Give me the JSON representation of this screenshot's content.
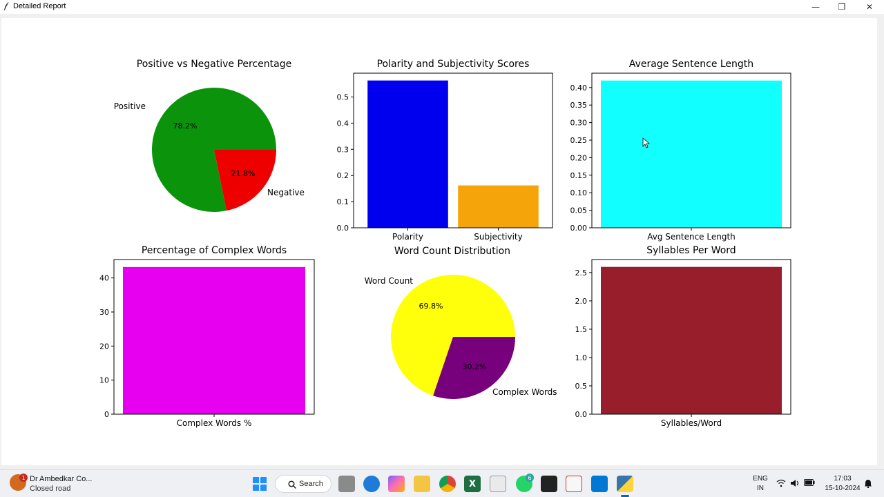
{
  "window": {
    "title": "Detailed Report",
    "controls": {
      "minimize": "—",
      "maximize": "❐",
      "close": "✕"
    }
  },
  "chart_data": [
    {
      "type": "pie",
      "title": "Positive vs Negative Percentage",
      "labels": [
        "Positive",
        "Negative"
      ],
      "values": [
        78.2,
        21.8
      ],
      "value_labels": [
        "78.2%",
        "21.8%"
      ],
      "colors": [
        "#0b930b",
        "#ee0000"
      ]
    },
    {
      "type": "bar",
      "title": "Polarity and Subjectivity Scores",
      "categories": [
        "Polarity",
        "Subjectivity"
      ],
      "values": [
        0.563,
        0.162
      ],
      "colors": [
        "#0000ee",
        "#f5a40a"
      ],
      "ylim": [
        0,
        0.591
      ],
      "yticks": [
        0.0,
        0.1,
        0.2,
        0.3,
        0.4,
        0.5
      ],
      "ytick_labels": [
        "0.0",
        "0.1",
        "0.2",
        "0.3",
        "0.4",
        "0.5"
      ]
    },
    {
      "type": "bar",
      "title": "Average Sentence Length",
      "categories": [
        "Avg Sentence Length"
      ],
      "values": [
        0.42
      ],
      "colors": [
        "#12ffff"
      ],
      "ylim": [
        0,
        0.441
      ],
      "yticks": [
        0.0,
        0.05,
        0.1,
        0.15,
        0.2,
        0.25,
        0.3,
        0.35,
        0.4
      ],
      "ytick_labels": [
        "0.00",
        "0.05",
        "0.10",
        "0.15",
        "0.20",
        "0.25",
        "0.30",
        "0.35",
        "0.40"
      ]
    },
    {
      "type": "bar",
      "title": "Percentage of Complex Words",
      "categories": [
        "Complex Words %"
      ],
      "values": [
        43.2
      ],
      "colors": [
        "#e700f0"
      ],
      "ylim": [
        0,
        45.4
      ],
      "yticks": [
        0,
        10,
        20,
        30,
        40
      ],
      "ytick_labels": [
        "0",
        "10",
        "20",
        "30",
        "40"
      ]
    },
    {
      "type": "pie",
      "title": "Word Count Distribution",
      "labels": [
        "Word Count",
        "Complex Words"
      ],
      "values": [
        69.8,
        30.2
      ],
      "value_labels": [
        "69.8%",
        "30.2%"
      ],
      "colors": [
        "#ffff0c",
        "#77007c"
      ]
    },
    {
      "type": "bar",
      "title": "Syllables Per Word",
      "categories": [
        "Syllables/Word"
      ],
      "values": [
        2.6
      ],
      "colors": [
        "#991e2c"
      ],
      "ylim": [
        0,
        2.73
      ],
      "yticks": [
        0.0,
        0.5,
        1.0,
        1.5,
        2.0,
        2.5
      ],
      "ytick_labels": [
        "0.0",
        "0.5",
        "1.0",
        "1.5",
        "2.0",
        "2.5"
      ]
    }
  ],
  "taskbar": {
    "weather_title": "Dr Ambedkar Co...",
    "weather_subtitle": "Closed road",
    "weather_badge": "1",
    "search_label": "Search",
    "apps": [
      {
        "name": "start",
        "icon": "windows-icon"
      },
      {
        "name": "task-view",
        "icon": "task-view-icon"
      },
      {
        "name": "edge",
        "icon": "edge-icon"
      },
      {
        "name": "copilot",
        "icon": "copilot-icon"
      },
      {
        "name": "file-explorer",
        "icon": "folder-icon"
      },
      {
        "name": "chrome",
        "icon": "chrome-icon"
      },
      {
        "name": "excel",
        "icon": "excel-icon",
        "glyph": "X"
      },
      {
        "name": "notepad",
        "icon": "notepad-icon"
      },
      {
        "name": "whatsapp",
        "icon": "whatsapp-icon",
        "badge": "6"
      },
      {
        "name": "terminal",
        "icon": "terminal-icon"
      },
      {
        "name": "paint",
        "icon": "paint-icon"
      },
      {
        "name": "vscode",
        "icon": "vscode-icon"
      },
      {
        "name": "python",
        "icon": "python-icon"
      }
    ],
    "language_top": "ENG",
    "language_bottom": "IN",
    "time": "17:03",
    "date": "15-10-2024"
  }
}
